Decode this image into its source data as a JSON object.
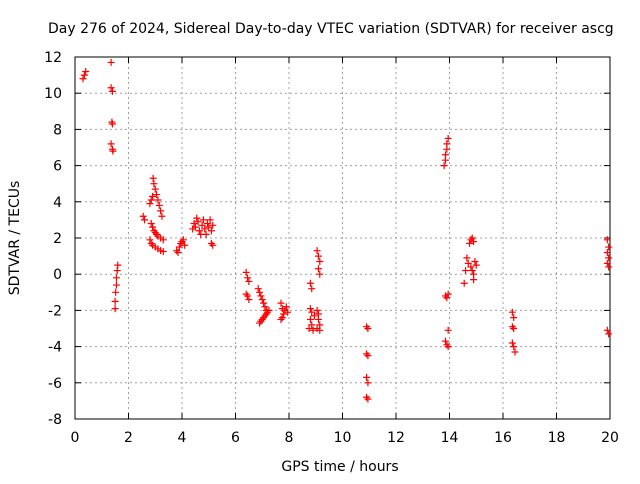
{
  "chart_data": {
    "type": "scatter",
    "title": "Day 276 of 2024, Sidereal Day-to-day VTEC variation (SDTVAR) for receiver ascg",
    "xlabel": "GPS time / hours",
    "ylabel": "SDTVAR / TECUs",
    "xlim": [
      0,
      20
    ],
    "ylim": [
      -8,
      12
    ],
    "xticks": [
      "0",
      "2",
      "4",
      "6",
      "8",
      "10",
      "12",
      "14",
      "16",
      "18",
      "20"
    ],
    "yticks": [
      "-8",
      "-6",
      "-4",
      "-2",
      "0",
      "2",
      "4",
      "6",
      "8",
      "10",
      "12"
    ],
    "grid": true,
    "marker": "plus",
    "color": "#ff0000",
    "series": [
      {
        "name": "SDTVAR",
        "points": [
          [
            0.3,
            10.8
          ],
          [
            0.35,
            11.0
          ],
          [
            0.4,
            11.2
          ],
          [
            1.35,
            11.7
          ],
          [
            1.35,
            10.3
          ],
          [
            1.4,
            10.1
          ],
          [
            1.38,
            8.4
          ],
          [
            1.4,
            8.3
          ],
          [
            1.35,
            7.2
          ],
          [
            1.4,
            6.9
          ],
          [
            1.42,
            6.8
          ],
          [
            1.5,
            -1.9
          ],
          [
            1.5,
            -1.5
          ],
          [
            1.52,
            -1.0
          ],
          [
            1.55,
            -0.6
          ],
          [
            1.55,
            -0.2
          ],
          [
            1.58,
            0.2
          ],
          [
            1.6,
            0.5
          ],
          [
            2.55,
            3.2
          ],
          [
            2.6,
            3.0
          ],
          [
            2.8,
            3.9
          ],
          [
            2.85,
            4.1
          ],
          [
            2.9,
            4.3
          ],
          [
            2.92,
            5.3
          ],
          [
            2.95,
            5.0
          ],
          [
            3.0,
            4.7
          ],
          [
            3.05,
            4.4
          ],
          [
            3.1,
            4.1
          ],
          [
            3.15,
            3.8
          ],
          [
            3.2,
            3.5
          ],
          [
            3.25,
            3.2
          ],
          [
            2.85,
            2.8
          ],
          [
            2.9,
            2.6
          ],
          [
            2.95,
            2.4
          ],
          [
            3.0,
            2.3
          ],
          [
            3.05,
            2.2
          ],
          [
            3.1,
            2.1
          ],
          [
            3.2,
            2.0
          ],
          [
            3.3,
            1.9
          ],
          [
            2.8,
            1.9
          ],
          [
            2.85,
            1.7
          ],
          [
            2.9,
            1.6
          ],
          [
            3.0,
            1.5
          ],
          [
            3.1,
            1.4
          ],
          [
            3.2,
            1.3
          ],
          [
            3.3,
            1.25
          ],
          [
            3.8,
            1.3
          ],
          [
            3.85,
            1.2
          ],
          [
            3.9,
            1.5
          ],
          [
            3.95,
            1.7
          ],
          [
            4.0,
            1.8
          ],
          [
            4.05,
            1.9
          ],
          [
            4.1,
            1.6
          ],
          [
            4.4,
            2.5
          ],
          [
            4.45,
            2.8
          ],
          [
            4.5,
            2.6
          ],
          [
            4.55,
            3.1
          ],
          [
            4.6,
            2.9
          ],
          [
            4.65,
            2.4
          ],
          [
            4.7,
            2.2
          ],
          [
            4.75,
            2.7
          ],
          [
            4.8,
            3.0
          ],
          [
            4.85,
            2.5
          ],
          [
            4.9,
            2.2
          ],
          [
            4.95,
            2.8
          ],
          [
            5.0,
            2.6
          ],
          [
            5.05,
            3.0
          ],
          [
            5.1,
            2.4
          ],
          [
            5.15,
            2.7
          ],
          [
            5.1,
            1.7
          ],
          [
            5.15,
            1.6
          ],
          [
            6.4,
            0.1
          ],
          [
            6.45,
            -0.2
          ],
          [
            6.5,
            -0.4
          ],
          [
            6.4,
            -1.1
          ],
          [
            6.45,
            -1.2
          ],
          [
            6.5,
            -1.4
          ],
          [
            6.85,
            -0.8
          ],
          [
            6.9,
            -1.0
          ],
          [
            6.95,
            -1.2
          ],
          [
            7.0,
            -1.4
          ],
          [
            7.05,
            -1.6
          ],
          [
            7.1,
            -1.8
          ],
          [
            7.15,
            -2.0
          ],
          [
            6.9,
            -2.7
          ],
          [
            6.95,
            -2.6
          ],
          [
            7.0,
            -2.5
          ],
          [
            7.05,
            -2.4
          ],
          [
            7.1,
            -2.3
          ],
          [
            7.15,
            -2.2
          ],
          [
            7.2,
            -2.1
          ],
          [
            7.25,
            -2.0
          ],
          [
            7.7,
            -1.6
          ],
          [
            7.7,
            -2.5
          ],
          [
            7.75,
            -1.9
          ],
          [
            7.8,
            -2.2
          ],
          [
            7.85,
            -2.0
          ],
          [
            7.9,
            -1.8
          ],
          [
            7.95,
            -2.1
          ],
          [
            7.75,
            -2.4
          ],
          [
            8.8,
            -0.5
          ],
          [
            8.85,
            -0.8
          ],
          [
            8.8,
            -1.9
          ],
          [
            8.85,
            -2.1
          ],
          [
            8.8,
            -2.5
          ],
          [
            8.85,
            -2.8
          ],
          [
            8.9,
            -3.1
          ],
          [
            8.75,
            -3.0
          ],
          [
            8.95,
            -2.3
          ],
          [
            9.05,
            1.3
          ],
          [
            9.1,
            1.0
          ],
          [
            9.15,
            0.7
          ],
          [
            9.1,
            0.3
          ],
          [
            9.15,
            0.0
          ],
          [
            9.05,
            -2.0
          ],
          [
            9.1,
            -2.5
          ],
          [
            9.15,
            -2.8
          ],
          [
            9.05,
            -3.0
          ],
          [
            9.1,
            -2.2
          ],
          [
            9.15,
            -3.1
          ],
          [
            10.9,
            -2.9
          ],
          [
            10.95,
            -3.0
          ],
          [
            10.9,
            -4.4
          ],
          [
            10.95,
            -4.5
          ],
          [
            10.9,
            -5.7
          ],
          [
            10.95,
            -6.0
          ],
          [
            10.9,
            -6.8
          ],
          [
            10.95,
            -6.9
          ],
          [
            13.8,
            6.0
          ],
          [
            13.85,
            6.3
          ],
          [
            13.85,
            6.6
          ],
          [
            13.9,
            6.9
          ],
          [
            13.9,
            7.2
          ],
          [
            13.95,
            7.5
          ],
          [
            13.85,
            -1.2
          ],
          [
            13.9,
            -1.3
          ],
          [
            13.95,
            -1.1
          ],
          [
            13.95,
            -3.1
          ],
          [
            13.85,
            -3.7
          ],
          [
            13.9,
            -3.9
          ],
          [
            13.95,
            -4.0
          ],
          [
            14.55,
            -0.5
          ],
          [
            14.6,
            0.2
          ],
          [
            14.65,
            0.9
          ],
          [
            14.7,
            0.6
          ],
          [
            14.75,
            1.7
          ],
          [
            14.8,
            1.9
          ],
          [
            14.85,
            2.0
          ],
          [
            14.9,
            1.8
          ],
          [
            14.8,
            0.4
          ],
          [
            14.85,
            0.2
          ],
          [
            14.9,
            0.0
          ],
          [
            14.9,
            -0.3
          ],
          [
            14.95,
            0.7
          ],
          [
            15.0,
            0.5
          ],
          [
            16.35,
            -2.1
          ],
          [
            16.4,
            -2.4
          ],
          [
            16.35,
            -2.9
          ],
          [
            16.4,
            -3.0
          ],
          [
            16.35,
            -3.8
          ],
          [
            16.4,
            -4.0
          ],
          [
            16.45,
            -4.3
          ],
          [
            19.9,
            1.9
          ],
          [
            19.95,
            1.5
          ],
          [
            19.9,
            1.2
          ],
          [
            19.95,
            0.9
          ],
          [
            19.9,
            0.6
          ],
          [
            19.95,
            0.4
          ],
          [
            19.9,
            -3.1
          ],
          [
            19.95,
            -3.3
          ]
        ]
      }
    ]
  }
}
